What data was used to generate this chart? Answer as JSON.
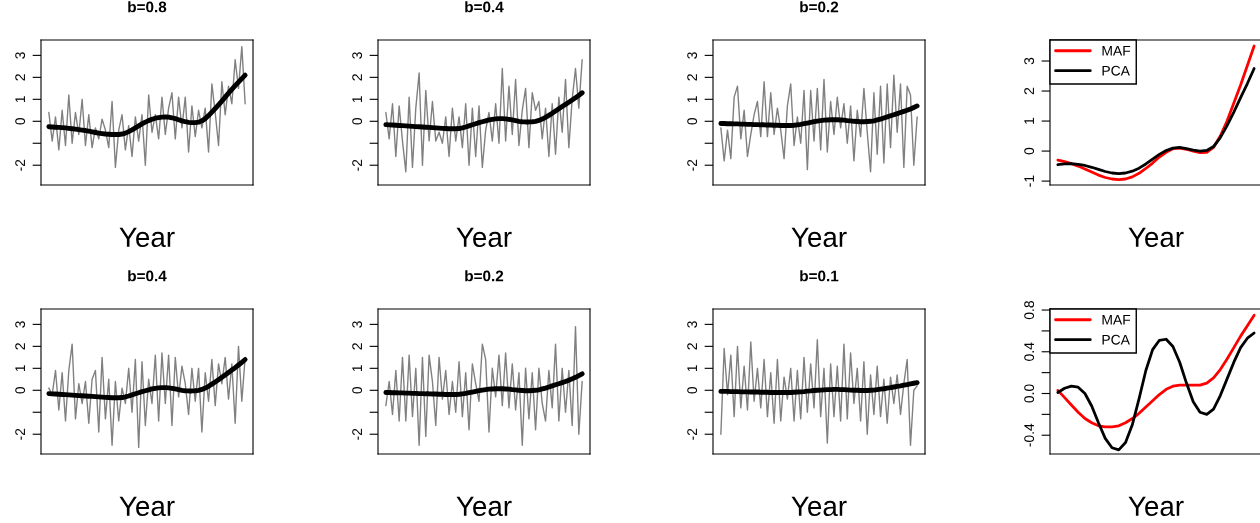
{
  "chart_data": [
    {
      "type": "line",
      "title": "b=0.8",
      "xlabel": "Year",
      "tick_labels": "y",
      "grid": false,
      "legend": false,
      "ylim": [
        -2.9,
        3.7
      ],
      "yticks": [
        -2,
        {
          "value": -1,
          "label": null
        },
        0,
        1,
        2,
        3
      ],
      "categories": [
        null,
        null,
        null,
        null,
        null,
        null,
        null,
        null,
        null,
        null,
        null,
        null,
        null,
        null,
        null,
        null,
        null,
        null,
        null,
        null,
        null,
        null,
        null,
        null,
        null,
        null,
        null,
        null,
        null,
        null,
        null,
        null,
        null,
        null,
        null,
        null,
        null,
        null,
        null,
        null,
        null,
        null,
        null,
        null,
        null,
        null,
        null,
        null,
        null,
        null,
        null,
        null,
        null,
        null,
        null,
        null,
        null,
        null,
        null,
        null
      ],
      "series": [
        {
          "color": "#808080",
          "values": [
            0.4,
            -0.9,
            0.2,
            -1.3,
            0.5,
            -1.1,
            1.2,
            -1.0,
            0.4,
            -0.6,
            1.0,
            -1.1,
            0.3,
            -1.2,
            -0.3,
            -0.8,
            0.1,
            -0.4,
            -1.2,
            0.9,
            -2.1,
            -0.4,
            0.3,
            -1.3,
            -0.2,
            -1.6,
            0.2,
            -0.9,
            0.3,
            -2.0,
            1.2,
            -0.5,
            0.3,
            -0.8,
            1.1,
            -0.6,
            0.6,
            1.3,
            -0.8,
            1.1,
            -0.3,
            1.1,
            -1.4,
            0.7,
            -0.7,
            0.5,
            -0.3,
            0.6,
            -1.4,
            1.7,
            0.4,
            -1.1,
            1.8,
            0.3,
            1.6,
            0.8,
            2.8,
            1.5,
            3.4,
            0.8
          ]
        },
        {
          "color": "#000000",
          "values": [
            -0.25,
            -0.26,
            -0.27,
            -0.28,
            -0.29,
            -0.3,
            -0.32,
            -0.34,
            -0.36,
            -0.38,
            -0.4,
            -0.42,
            -0.45,
            -0.48,
            -0.51,
            -0.54,
            -0.56,
            -0.58,
            -0.59,
            -0.6,
            -0.6,
            -0.6,
            -0.58,
            -0.54,
            -0.47,
            -0.39,
            -0.3,
            -0.21,
            -0.12,
            -0.04,
            0.03,
            0.09,
            0.14,
            0.17,
            0.19,
            0.2,
            0.19,
            0.16,
            0.12,
            0.07,
            0.02,
            -0.02,
            -0.05,
            -0.06,
            -0.06,
            -0.04,
            0.02,
            0.12,
            0.26,
            0.42,
            0.58,
            0.75,
            0.92,
            1.1,
            1.28,
            1.45,
            1.62,
            1.78,
            1.94,
            2.1
          ]
        }
      ]
    },
    {
      "type": "line",
      "title": "b=0.4",
      "xlabel": "Year",
      "tick_labels": "y",
      "grid": false,
      "legend": false,
      "ylim": [
        -2.9,
        3.7
      ],
      "yticks": [
        -2,
        {
          "value": -1,
          "label": null
        },
        0,
        1,
        2,
        3
      ],
      "categories": [
        null,
        null,
        null,
        null,
        null,
        null,
        null,
        null,
        null,
        null,
        null,
        null,
        null,
        null,
        null,
        null,
        null,
        null,
        null,
        null,
        null,
        null,
        null,
        null,
        null,
        null,
        null,
        null,
        null,
        null,
        null,
        null,
        null,
        null,
        null,
        null,
        null,
        null,
        null,
        null,
        null,
        null,
        null,
        null,
        null,
        null,
        null,
        null,
        null,
        null,
        null,
        null,
        null,
        null,
        null,
        null,
        null,
        null,
        null,
        null
      ],
      "series": [
        {
          "color": "#808080",
          "values": [
            0.4,
            -0.8,
            0.8,
            -1.6,
            0.7,
            -0.9,
            -2.3,
            1.1,
            -2.1,
            0.6,
            2.2,
            -2.0,
            1.4,
            -0.9,
            0.9,
            -0.9,
            -0.5,
            -1.0,
            0.2,
            -1.6,
            0.6,
            -0.9,
            0.2,
            -1.2,
            0.8,
            -2.0,
            0.6,
            -1.6,
            0.7,
            -2.1,
            -0.4,
            0.4,
            -0.9,
            0.8,
            -1.0,
            2.4,
            -0.9,
            1.6,
            -0.6,
            1.9,
            -1.1,
            0.5,
            1.5,
            -1.2,
            1.3,
            0.5,
            0.9,
            -0.8,
            0.6,
            -1.6,
            0.8,
            -1.5,
            1.1,
            -0.5,
            1.9,
            -1.2,
            1.0,
            2.4,
            0.6,
            2.8
          ]
        },
        {
          "color": "#000000",
          "values": [
            -0.15,
            -0.16,
            -0.17,
            -0.18,
            -0.19,
            -0.2,
            -0.21,
            -0.22,
            -0.23,
            -0.24,
            -0.25,
            -0.26,
            -0.27,
            -0.28,
            -0.29,
            -0.3,
            -0.31,
            -0.32,
            -0.33,
            -0.34,
            -0.34,
            -0.34,
            -0.33,
            -0.3,
            -0.26,
            -0.21,
            -0.16,
            -0.11,
            -0.06,
            -0.02,
            0.02,
            0.06,
            0.09,
            0.11,
            0.12,
            0.12,
            0.11,
            0.09,
            0.06,
            0.03,
            0.0,
            -0.02,
            -0.03,
            -0.03,
            -0.02,
            0.0,
            0.04,
            0.1,
            0.18,
            0.27,
            0.37,
            0.47,
            0.57,
            0.67,
            0.77,
            0.87,
            0.97,
            1.07,
            1.18,
            1.3
          ]
        }
      ]
    },
    {
      "type": "line",
      "title": "b=0.2",
      "xlabel": "Year",
      "tick_labels": "y",
      "grid": false,
      "legend": false,
      "ylim": [
        -2.9,
        3.7
      ],
      "yticks": [
        -2,
        {
          "value": -1,
          "label": null
        },
        0,
        1,
        2,
        3
      ],
      "categories": [
        null,
        null,
        null,
        null,
        null,
        null,
        null,
        null,
        null,
        null,
        null,
        null,
        null,
        null,
        null,
        null,
        null,
        null,
        null,
        null,
        null,
        null,
        null,
        null,
        null,
        null,
        null,
        null,
        null,
        null,
        null,
        null,
        null,
        null,
        null,
        null,
        null,
        null,
        null,
        null,
        null,
        null,
        null,
        null,
        null,
        null,
        null,
        null,
        null,
        null,
        null,
        null,
        null,
        null,
        null,
        null,
        null,
        null,
        null,
        null
      ],
      "series": [
        {
          "color": "#808080",
          "values": [
            -0.3,
            -1.8,
            -0.4,
            -1.7,
            1.1,
            1.6,
            -0.8,
            0.5,
            -1.6,
            -0.6,
            0.3,
            0.9,
            -0.7,
            1.8,
            -0.7,
            1.3,
            -0.6,
            0.6,
            -0.4,
            -1.7,
            0.7,
            1.7,
            -1.1,
            0.2,
            -1.0,
            1.4,
            -2.2,
            1.4,
            -0.9,
            1.5,
            -1.3,
            1.9,
            -1.4,
            0.9,
            -0.6,
            1.1,
            -0.3,
            0.8,
            -1.0,
            0.7,
            -1.8,
            0.5,
            -0.7,
            1.5,
            -0.5,
            -2.3,
            1.3,
            -1.5,
            1.6,
            -1.9,
            1.7,
            -1.2,
            2.1,
            -0.5,
            1.7,
            -2.1,
            1.6,
            1.2,
            -2.0,
            0.2
          ]
        },
        {
          "color": "#000000",
          "values": [
            -0.1,
            -0.1,
            -0.11,
            -0.11,
            -0.12,
            -0.12,
            -0.13,
            -0.13,
            -0.14,
            -0.14,
            -0.15,
            -0.15,
            -0.16,
            -0.16,
            -0.17,
            -0.17,
            -0.18,
            -0.18,
            -0.19,
            -0.19,
            -0.19,
            -0.19,
            -0.18,
            -0.16,
            -0.14,
            -0.11,
            -0.08,
            -0.05,
            -0.02,
            0.01,
            0.03,
            0.05,
            0.06,
            0.07,
            0.07,
            0.07,
            0.06,
            0.05,
            0.03,
            0.02,
            0.0,
            -0.01,
            -0.02,
            -0.02,
            -0.01,
            0.0,
            0.02,
            0.06,
            0.1,
            0.15,
            0.2,
            0.25,
            0.3,
            0.35,
            0.4,
            0.45,
            0.5,
            0.56,
            0.63,
            0.7
          ]
        }
      ]
    },
    {
      "type": "line",
      "xlabel": "Year",
      "tick_labels": "y",
      "grid": false,
      "legend": "top left",
      "ylim": [
        -1.13,
        3.7
      ],
      "yticks": [
        -1,
        0,
        1,
        2,
        3
      ],
      "categories": [
        null,
        null,
        null,
        null,
        null,
        null,
        null,
        null,
        null,
        null,
        null,
        null,
        null,
        null,
        null,
        null,
        null,
        null,
        null,
        null,
        null,
        null,
        null,
        null,
        null,
        null,
        null,
        null,
        null,
        null
      ],
      "series": [
        {
          "name": "MAF",
          "color": "#ff0000",
          "values": [
            -0.3,
            -0.35,
            -0.42,
            -0.5,
            -0.6,
            -0.7,
            -0.8,
            -0.88,
            -0.93,
            -0.95,
            -0.93,
            -0.86,
            -0.74,
            -0.58,
            -0.4,
            -0.2,
            -0.04,
            0.08,
            0.1,
            0.06,
            0.0,
            -0.05,
            -0.04,
            0.12,
            0.5,
            1.0,
            1.6,
            2.2,
            2.85,
            3.5
          ]
        },
        {
          "name": "PCA",
          "color": "#000000",
          "values": [
            -0.45,
            -0.43,
            -0.42,
            -0.44,
            -0.48,
            -0.54,
            -0.61,
            -0.68,
            -0.73,
            -0.75,
            -0.73,
            -0.67,
            -0.57,
            -0.43,
            -0.27,
            -0.11,
            0.02,
            0.1,
            0.12,
            0.08,
            0.03,
            0.0,
            0.02,
            0.15,
            0.45,
            0.85,
            1.3,
            1.78,
            2.25,
            2.75
          ]
        }
      ]
    },
    {
      "type": "line",
      "title": "b=0.4",
      "xlabel": "Year",
      "tick_labels": "y",
      "grid": false,
      "legend": false,
      "ylim": [
        -2.9,
        3.7
      ],
      "yticks": [
        -2,
        {
          "value": -1,
          "label": null
        },
        0,
        1,
        2,
        3
      ],
      "categories": [
        null,
        null,
        null,
        null,
        null,
        null,
        null,
        null,
        null,
        null,
        null,
        null,
        null,
        null,
        null,
        null,
        null,
        null,
        null,
        null,
        null,
        null,
        null,
        null,
        null,
        null,
        null,
        null,
        null,
        null,
        null,
        null,
        null,
        null,
        null,
        null,
        null,
        null,
        null,
        null,
        null,
        null,
        null,
        null,
        null,
        null,
        null,
        null,
        null,
        null,
        null,
        null,
        null,
        null,
        null,
        null,
        null,
        null,
        null,
        null
      ],
      "series": [
        {
          "color": "#808080",
          "values": [
            0.1,
            -0.2,
            0.9,
            -0.9,
            0.8,
            -1.4,
            0.9,
            2.1,
            -1.3,
            0.3,
            -0.6,
            0.4,
            -1.5,
            0.5,
            0.9,
            -1.9,
            1.5,
            -1.3,
            0.5,
            -2.5,
            0.4,
            -1.4,
            0.1,
            -0.6,
            1.0,
            -1.0,
            1.4,
            -2.6,
            1.3,
            -1.6,
            0.5,
            -0.6,
            1.6,
            -1.4,
            1.7,
            -0.6,
            1.6,
            -1.6,
            1.5,
            -0.3,
            1.1,
            0.3,
            -1.1,
            1.0,
            -0.5,
            1.0,
            -1.9,
            0.8,
            -0.5,
            1.4,
            -0.7,
            1.2,
            0.3,
            1.5,
            -0.4,
            1.2,
            -1.5,
            2.0,
            -0.5,
            1.5
          ]
        },
        {
          "color": "#000000",
          "values": [
            -0.15,
            -0.16,
            -0.17,
            -0.18,
            -0.19,
            -0.2,
            -0.21,
            -0.22,
            -0.23,
            -0.24,
            -0.25,
            -0.26,
            -0.27,
            -0.28,
            -0.29,
            -0.3,
            -0.31,
            -0.32,
            -0.33,
            -0.34,
            -0.34,
            -0.34,
            -0.33,
            -0.3,
            -0.26,
            -0.21,
            -0.16,
            -0.11,
            -0.06,
            -0.02,
            0.02,
            0.06,
            0.09,
            0.11,
            0.12,
            0.12,
            0.11,
            0.09,
            0.06,
            0.03,
            0.0,
            -0.02,
            -0.03,
            -0.03,
            -0.02,
            0.0,
            0.04,
            0.1,
            0.18,
            0.28,
            0.38,
            0.48,
            0.59,
            0.7,
            0.81,
            0.92,
            1.03,
            1.15,
            1.27,
            1.4
          ]
        }
      ]
    },
    {
      "type": "line",
      "title": "b=0.2",
      "xlabel": "Year",
      "tick_labels": "y",
      "grid": false,
      "legend": false,
      "ylim": [
        -2.9,
        3.7
      ],
      "yticks": [
        -2,
        {
          "value": -1,
          "label": null
        },
        0,
        1,
        2,
        3
      ],
      "categories": [
        null,
        null,
        null,
        null,
        null,
        null,
        null,
        null,
        null,
        null,
        null,
        null,
        null,
        null,
        null,
        null,
        null,
        null,
        null,
        null,
        null,
        null,
        null,
        null,
        null,
        null,
        null,
        null,
        null,
        null,
        null,
        null,
        null,
        null,
        null,
        null,
        null,
        null,
        null,
        null,
        null,
        null,
        null,
        null,
        null,
        null,
        null,
        null,
        null,
        null,
        null,
        null,
        null,
        null,
        null,
        null,
        null,
        null,
        null,
        null
      ],
      "series": [
        {
          "color": "#808080",
          "values": [
            -0.7,
            0.4,
            -1.1,
            0.9,
            -1.4,
            1.5,
            -1.4,
            1.6,
            -1.2,
            1.0,
            -2.5,
            1.5,
            -2.1,
            1.6,
            0.4,
            -1.6,
            1.5,
            -0.4,
            0.9,
            -1.1,
            0.4,
            -1.0,
            1.3,
            -1.2,
            0.8,
            -1.8,
            1.2,
            0.3,
            -0.5,
            2.1,
            1.4,
            -1.9,
            1.0,
            -0.3,
            1.6,
            -0.7,
            1.7,
            -0.8,
            1.2,
            -0.9,
            0.8,
            -2.5,
            1.0,
            -1.3,
            0.8,
            -1.8,
            1.0,
            -0.6,
            -1.4,
            0.9,
            -0.8,
            2.1,
            -1.4,
            1.0,
            -1.0,
            0.9,
            -1.6,
            2.9,
            -2.0,
            0.4
          ]
        },
        {
          "color": "#000000",
          "values": [
            -0.1,
            -0.1,
            -0.11,
            -0.11,
            -0.12,
            -0.12,
            -0.13,
            -0.13,
            -0.14,
            -0.14,
            -0.15,
            -0.15,
            -0.16,
            -0.16,
            -0.17,
            -0.17,
            -0.18,
            -0.18,
            -0.19,
            -0.19,
            -0.19,
            -0.19,
            -0.18,
            -0.16,
            -0.14,
            -0.11,
            -0.08,
            -0.05,
            -0.02,
            0.01,
            0.03,
            0.05,
            0.06,
            0.07,
            0.07,
            0.07,
            0.06,
            0.05,
            0.03,
            0.02,
            0.0,
            -0.01,
            -0.02,
            -0.02,
            -0.01,
            0.0,
            0.02,
            0.06,
            0.1,
            0.15,
            0.2,
            0.25,
            0.3,
            0.35,
            0.4,
            0.46,
            0.52,
            0.59,
            0.67,
            0.75
          ]
        }
      ]
    },
    {
      "type": "line",
      "title": "b=0.1",
      "xlabel": "Year",
      "tick_labels": "y",
      "grid": false,
      "legend": false,
      "ylim": [
        -2.9,
        3.7
      ],
      "yticks": [
        -2,
        {
          "value": -1,
          "label": null
        },
        0,
        1,
        2,
        3
      ],
      "categories": [
        null,
        null,
        null,
        null,
        null,
        null,
        null,
        null,
        null,
        null,
        null,
        null,
        null,
        null,
        null,
        null,
        null,
        null,
        null,
        null,
        null,
        null,
        null,
        null,
        null,
        null,
        null,
        null,
        null,
        null,
        null,
        null,
        null,
        null,
        null,
        null,
        null,
        null,
        null,
        null,
        null,
        null,
        null,
        null,
        null,
        null,
        null,
        null,
        null,
        null,
        null,
        null,
        null,
        null,
        null,
        null,
        null,
        null,
        null,
        null
      ],
      "series": [
        {
          "color": "#808080",
          "values": [
            -2.0,
            1.9,
            -0.2,
            1.6,
            -1.2,
            2.0,
            -0.8,
            1.1,
            -0.9,
            2.2,
            -0.5,
            1.0,
            -0.8,
            1.4,
            -1.2,
            0.8,
            -1.5,
            1.4,
            -1.4,
            0.6,
            -0.4,
            1.0,
            -1.4,
            0.9,
            -1.3,
            1.5,
            -1.0,
            1.2,
            -0.8,
            2.3,
            -1.2,
            1.0,
            -2.4,
            1.2,
            -1.2,
            1.1,
            -1.4,
            2.1,
            -1.3,
            1.7,
            -0.6,
            1.0,
            -1.4,
            1.3,
            -2.0,
            0.7,
            -1.1,
            1.1,
            -1.2,
            0.5,
            -1.5,
            0.6,
            -0.6,
            0.7,
            -1.1,
            0.3,
            1.4,
            -2.5,
            0.0,
            0.2
          ]
        },
        {
          "color": "#000000",
          "values": [
            -0.05,
            -0.05,
            -0.05,
            -0.06,
            -0.06,
            -0.06,
            -0.07,
            -0.07,
            -0.07,
            -0.08,
            -0.08,
            -0.08,
            -0.09,
            -0.09,
            -0.09,
            -0.1,
            -0.1,
            -0.1,
            -0.1,
            -0.1,
            -0.1,
            -0.1,
            -0.09,
            -0.08,
            -0.07,
            -0.06,
            -0.04,
            -0.03,
            -0.01,
            0.0,
            0.01,
            0.02,
            0.03,
            0.03,
            0.04,
            0.04,
            0.03,
            0.03,
            0.02,
            0.01,
            0.0,
            0.0,
            -0.01,
            -0.01,
            -0.01,
            0.0,
            0.01,
            0.03,
            0.05,
            0.07,
            0.1,
            0.12,
            0.15,
            0.18,
            0.2,
            0.23,
            0.26,
            0.29,
            0.32,
            0.35
          ]
        }
      ]
    },
    {
      "type": "line",
      "xlabel": "Year",
      "tick_labels": "y",
      "grid": false,
      "legend": "top left",
      "ylim": [
        -0.58,
        0.81
      ],
      "yticks": [
        {
          "value": -0.4,
          "label": "-0.4"
        },
        {
          "value": -0.2,
          "label": null
        },
        {
          "value": 0.0,
          "label": "0.0"
        },
        {
          "value": 0.2,
          "label": null
        },
        {
          "value": 0.4,
          "label": "0.4"
        },
        {
          "value": 0.6,
          "label": null
        },
        {
          "value": 0.8,
          "label": "0.8"
        }
      ],
      "categories": [
        null,
        null,
        null,
        null,
        null,
        null,
        null,
        null,
        null,
        null,
        null,
        null,
        null,
        null,
        null,
        null,
        null,
        null,
        null,
        null,
        null,
        null,
        null,
        null,
        null,
        null,
        null,
        null,
        null,
        null
      ],
      "series": [
        {
          "name": "MAF",
          "color": "#ff0000",
          "values": [
            0.03,
            -0.04,
            -0.11,
            -0.18,
            -0.24,
            -0.28,
            -0.31,
            -0.32,
            -0.32,
            -0.31,
            -0.28,
            -0.24,
            -0.19,
            -0.13,
            -0.07,
            -0.01,
            0.04,
            0.07,
            0.08,
            0.08,
            0.08,
            0.08,
            0.1,
            0.15,
            0.23,
            0.33,
            0.44,
            0.55,
            0.65,
            0.75
          ]
        },
        {
          "name": "PCA",
          "color": "#000000",
          "values": [
            0.01,
            0.05,
            0.07,
            0.06,
            0.0,
            -0.12,
            -0.28,
            -0.43,
            -0.52,
            -0.54,
            -0.47,
            -0.3,
            -0.05,
            0.22,
            0.42,
            0.51,
            0.52,
            0.45,
            0.3,
            0.1,
            -0.08,
            -0.18,
            -0.2,
            -0.15,
            -0.02,
            0.14,
            0.3,
            0.44,
            0.53,
            0.58
          ]
        }
      ]
    }
  ]
}
